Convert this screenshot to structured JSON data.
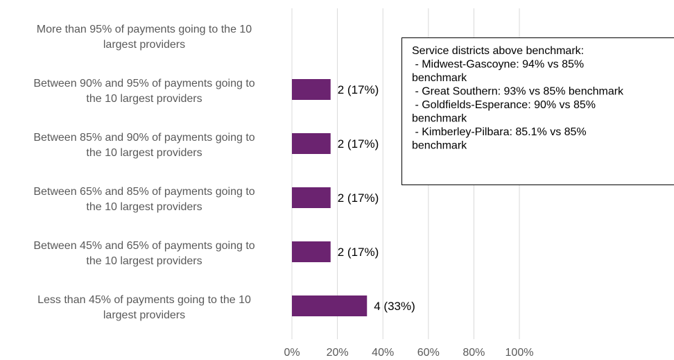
{
  "chart_data": {
    "type": "bar",
    "orientation": "horizontal",
    "categories": [
      "More than 95% of payments going to the 10 largest providers",
      "Between 90% and 95% of payments going to the 10 largest providers",
      "Between 85% and 90% of payments going to the 10 largest providers",
      "Between 65% and 85% of payments going to the 10 largest providers",
      "Between 45% and 65% of payments going to the 10 largest providers",
      "Less than 45% of payments going to the 10 largest providers"
    ],
    "category_lines": [
      [
        "More than 95% of payments going to the 10",
        "largest providers"
      ],
      [
        "Between 90% and 95% of payments going to",
        "the 10 largest providers"
      ],
      [
        "Between 85% and 90% of payments going to",
        "the 10 largest providers"
      ],
      [
        "Between 65% and 85% of payments going to",
        "the 10 largest providers"
      ],
      [
        "Between 45% and 65% of payments going to",
        "the 10 largest providers"
      ],
      [
        "Less than 45% of payments going to the 10",
        "largest providers"
      ]
    ],
    "values": [
      0,
      17,
      17,
      17,
      17,
      33
    ],
    "data_labels": [
      "",
      "2 (17%)",
      "2 (17%)",
      "2 (17%)",
      "2 (17%)",
      "4 (33%)"
    ],
    "xlim": [
      0,
      100
    ],
    "x_ticks": [
      "0%",
      "20%",
      "40%",
      "60%",
      "80%",
      "100%"
    ],
    "grid": true,
    "bar_color": "#6B2370",
    "annotation": [
      "Service districts above benchmark:",
      " - Midwest-Gascoyne: 94% vs 85%",
      "benchmark",
      " - Great Southern: 93% vs 85% benchmark",
      " - Goldfields-Esperance: 90% vs 85%",
      "benchmark",
      " - Kimberley-Pilbara: 85.1% vs 85%",
      "benchmark"
    ]
  }
}
